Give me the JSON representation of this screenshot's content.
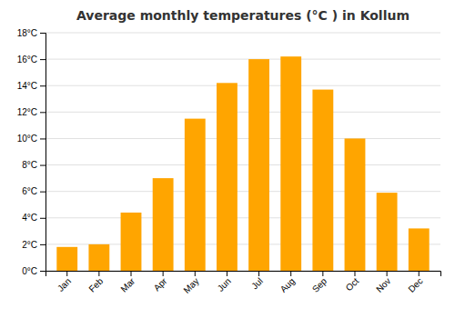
{
  "chart_data": {
    "type": "bar",
    "title": "Average monthly temperatures (°C ) in Kollum",
    "categories": [
      "Jan",
      "Feb",
      "Mar",
      "Apr",
      "May",
      "Jun",
      "Jul",
      "Aug",
      "Sep",
      "Oct",
      "Nov",
      "Dec"
    ],
    "values": [
      1.8,
      2.0,
      4.4,
      7.0,
      11.5,
      14.2,
      16.0,
      16.2,
      13.7,
      10.0,
      5.9,
      3.2
    ],
    "color": "#FFA500",
    "ylim": [
      0,
      18
    ],
    "yticks": [
      {
        "value": 0,
        "label": "0°C"
      },
      {
        "value": 2,
        "label": "2°C"
      },
      {
        "value": 4,
        "label": "4°C"
      },
      {
        "value": 6,
        "label": "6°C"
      },
      {
        "value": 8,
        "label": "8°C"
      },
      {
        "value": 10,
        "label": "10°C"
      },
      {
        "value": 12,
        "label": "12°C"
      },
      {
        "value": 14,
        "label": "14°C"
      },
      {
        "value": 16,
        "label": "16°C"
      },
      {
        "value": 18,
        "label": "18°C"
      }
    ],
    "grid": true
  }
}
